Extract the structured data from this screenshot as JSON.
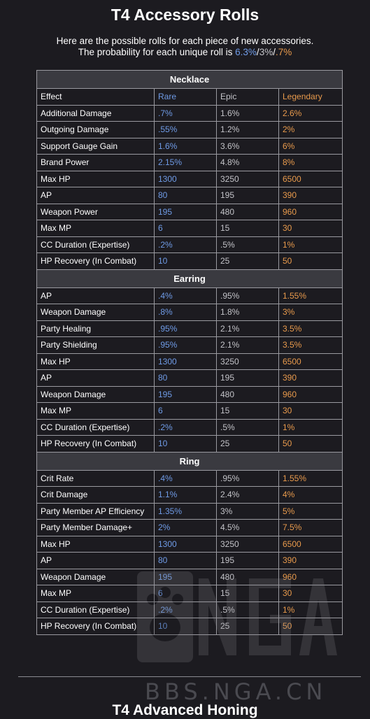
{
  "title": "T4 Accessory Rolls",
  "intro": {
    "line1": "Here are the possible rolls for each piece of new accessories.",
    "line2_prefix": "The probability for each unique roll is ",
    "rare_pct": "6.3%",
    "sep1": "/",
    "epic_pct": "3%",
    "sep2": "/",
    "leg_pct": ".7%"
  },
  "headers": {
    "effect": "Effect",
    "rare": "Rare",
    "epic": "Epic",
    "legendary": "Legendary"
  },
  "sections": [
    {
      "name": "Necklace",
      "rows": [
        {
          "effect": "Additional Damage",
          "rare": ".7%",
          "epic": "1.6%",
          "legendary": "2.6%"
        },
        {
          "effect": "Outgoing Damage",
          "rare": ".55%",
          "epic": "1.2%",
          "legendary": "2%"
        },
        {
          "effect": "Support Gauge Gain",
          "rare": "1.6%",
          "epic": "3.6%",
          "legendary": "6%"
        },
        {
          "effect": "Brand Power",
          "rare": "2.15%",
          "epic": "4.8%",
          "legendary": "8%"
        },
        {
          "effect": "Max HP",
          "rare": "1300",
          "epic": "3250",
          "legendary": "6500"
        },
        {
          "effect": "AP",
          "rare": "80",
          "epic": "195",
          "legendary": "390"
        },
        {
          "effect": "Weapon Power",
          "rare": "195",
          "epic": "480",
          "legendary": "960"
        },
        {
          "effect": "Max MP",
          "rare": "6",
          "epic": "15",
          "legendary": "30"
        },
        {
          "effect": "CC Duration (Expertise)",
          "rare": ".2%",
          "epic": ".5%",
          "legendary": "1%"
        },
        {
          "effect": "HP Recovery (In Combat)",
          "rare": "10",
          "epic": "25",
          "legendary": "50"
        }
      ]
    },
    {
      "name": "Earring",
      "rows": [
        {
          "effect": "AP",
          "rare": ".4%",
          "epic": ".95%",
          "legendary": "1.55%"
        },
        {
          "effect": "Weapon Damage",
          "rare": ".8%",
          "epic": "1.8%",
          "legendary": "3%"
        },
        {
          "effect": "Party Healing",
          "rare": ".95%",
          "epic": "2.1%",
          "legendary": "3.5%"
        },
        {
          "effect": "Party Shielding",
          "rare": ".95%",
          "epic": "2.1%",
          "legendary": "3.5%"
        },
        {
          "effect": "Max HP",
          "rare": "1300",
          "epic": "3250",
          "legendary": "6500"
        },
        {
          "effect": "AP",
          "rare": "80",
          "epic": "195",
          "legendary": "390"
        },
        {
          "effect": "Weapon Damage",
          "rare": "195",
          "epic": "480",
          "legendary": "960"
        },
        {
          "effect": "Max MP",
          "rare": "6",
          "epic": "15",
          "legendary": "30"
        },
        {
          "effect": "CC Duration (Expertise)",
          "rare": ".2%",
          "epic": ".5%",
          "legendary": "1%"
        },
        {
          "effect": "HP Recovery (In Combat)",
          "rare": "10",
          "epic": "25",
          "legendary": "50"
        }
      ]
    },
    {
      "name": "Ring",
      "rows": [
        {
          "effect": "Crit Rate",
          "rare": ".4%",
          "epic": ".95%",
          "legendary": "1.55%"
        },
        {
          "effect": "Crit Damage",
          "rare": "1.1%",
          "epic": "2.4%",
          "legendary": "4%"
        },
        {
          "effect": "Party Member AP Efficiency",
          "rare": "1.35%",
          "epic": "3%",
          "legendary": "5%"
        },
        {
          "effect": "Party Member Damage+",
          "rare": "2%",
          "epic": "4.5%",
          "legendary": "7.5%"
        },
        {
          "effect": "Max HP",
          "rare": "1300",
          "epic": "3250",
          "legendary": "6500"
        },
        {
          "effect": "AP",
          "rare": "80",
          "epic": "195",
          "legendary": "390"
        },
        {
          "effect": "Weapon Damage",
          "rare": "195",
          "epic": "480",
          "legendary": "960"
        },
        {
          "effect": "Max MP",
          "rare": "6",
          "epic": "15",
          "legendary": "30"
        },
        {
          "effect": "CC Duration (Expertise)",
          "rare": ".2%",
          "epic": ".5%",
          "legendary": "1%"
        },
        {
          "effect": "HP Recovery (In Combat)",
          "rare": "10",
          "epic": "25",
          "legendary": "50"
        }
      ]
    }
  ],
  "watermark": {
    "logo_text": "NGA",
    "url": "BBS.NGA.CN"
  },
  "next_heading": "T4 Advanced Honing",
  "colors": {
    "rare": "#6f9be6",
    "epic": "#c3c3c8",
    "legendary": "#e89a4c",
    "background": "#1c1b20"
  }
}
